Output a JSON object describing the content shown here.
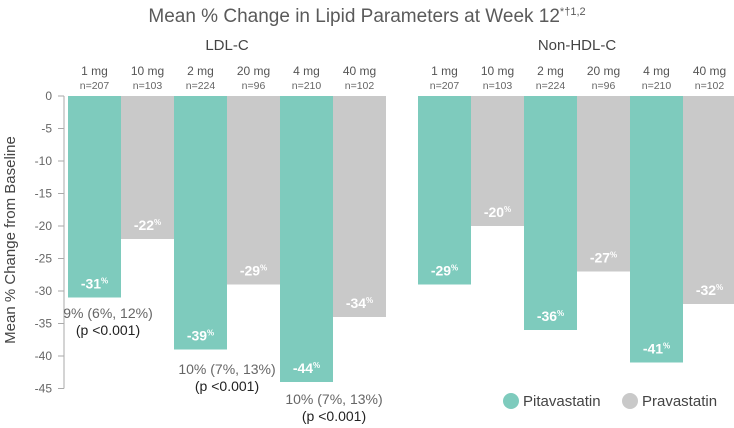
{
  "chart_data": {
    "type": "bar",
    "title": "Mean % Change in Lipid Parameters at Week 12",
    "title_superscript": "*†1,2",
    "ylabel": "Mean % Change from Baseline",
    "ylim": [
      -45,
      0
    ],
    "yticks": [
      "0",
      "-5",
      "-10",
      "-15",
      "-20",
      "-25",
      "-30",
      "-35",
      "-40",
      "-45"
    ],
    "grid": false,
    "legend_position": "bottom-right",
    "colors": {
      "Pitavastatin": "#7ecbbd",
      "Pravastatin": "#c9c9c9"
    },
    "legend": [
      "Pitavastatin",
      "Pravastatin"
    ],
    "groups": [
      {
        "name": "LDL-C",
        "bars": [
          {
            "dose": "1 mg",
            "n": "n=207",
            "series": "Pitavastatin",
            "value": -31,
            "label": "-31"
          },
          {
            "dose": "10 mg",
            "n": "n=103",
            "series": "Pravastatin",
            "value": -22,
            "label": "-22"
          },
          {
            "dose": "2 mg",
            "n": "n=224",
            "series": "Pitavastatin",
            "value": -39,
            "label": "-39"
          },
          {
            "dose": "20 mg",
            "n": "n=96",
            "series": "Pravastatin",
            "value": -29,
            "label": "-29"
          },
          {
            "dose": "4 mg",
            "n": "n=210",
            "series": "Pitavastatin",
            "value": -44,
            "label": "-44"
          },
          {
            "dose": "40 mg",
            "n": "n=102",
            "series": "Pravastatin",
            "value": -34,
            "label": "-34"
          }
        ],
        "annotations": [
          {
            "line1": "9% (6%, 12%)",
            "line2": "(p <0.001)"
          },
          {
            "line1": "10% (7%, 13%)",
            "line2": "(p <0.001)"
          },
          {
            "line1": "10% (7%, 13%)",
            "line2": "(p <0.001)"
          }
        ]
      },
      {
        "name": "Non-HDL-C",
        "bars": [
          {
            "dose": "1 mg",
            "n": "n=207",
            "series": "Pitavastatin",
            "value": -29,
            "label": "-29"
          },
          {
            "dose": "10 mg",
            "n": "n=103",
            "series": "Pravastatin",
            "value": -20,
            "label": "-20"
          },
          {
            "dose": "2 mg",
            "n": "n=224",
            "series": "Pitavastatin",
            "value": -36,
            "label": "-36"
          },
          {
            "dose": "20 mg",
            "n": "n=96",
            "series": "Pravastatin",
            "value": -27,
            "label": "-27"
          },
          {
            "dose": "4 mg",
            "n": "n=210",
            "series": "Pitavastatin",
            "value": -41,
            "label": "-41"
          },
          {
            "dose": "40 mg",
            "n": "n=102",
            "series": "Pravastatin",
            "value": -32,
            "label": "-32"
          }
        ],
        "annotations": []
      }
    ],
    "value_suffix": "%"
  }
}
